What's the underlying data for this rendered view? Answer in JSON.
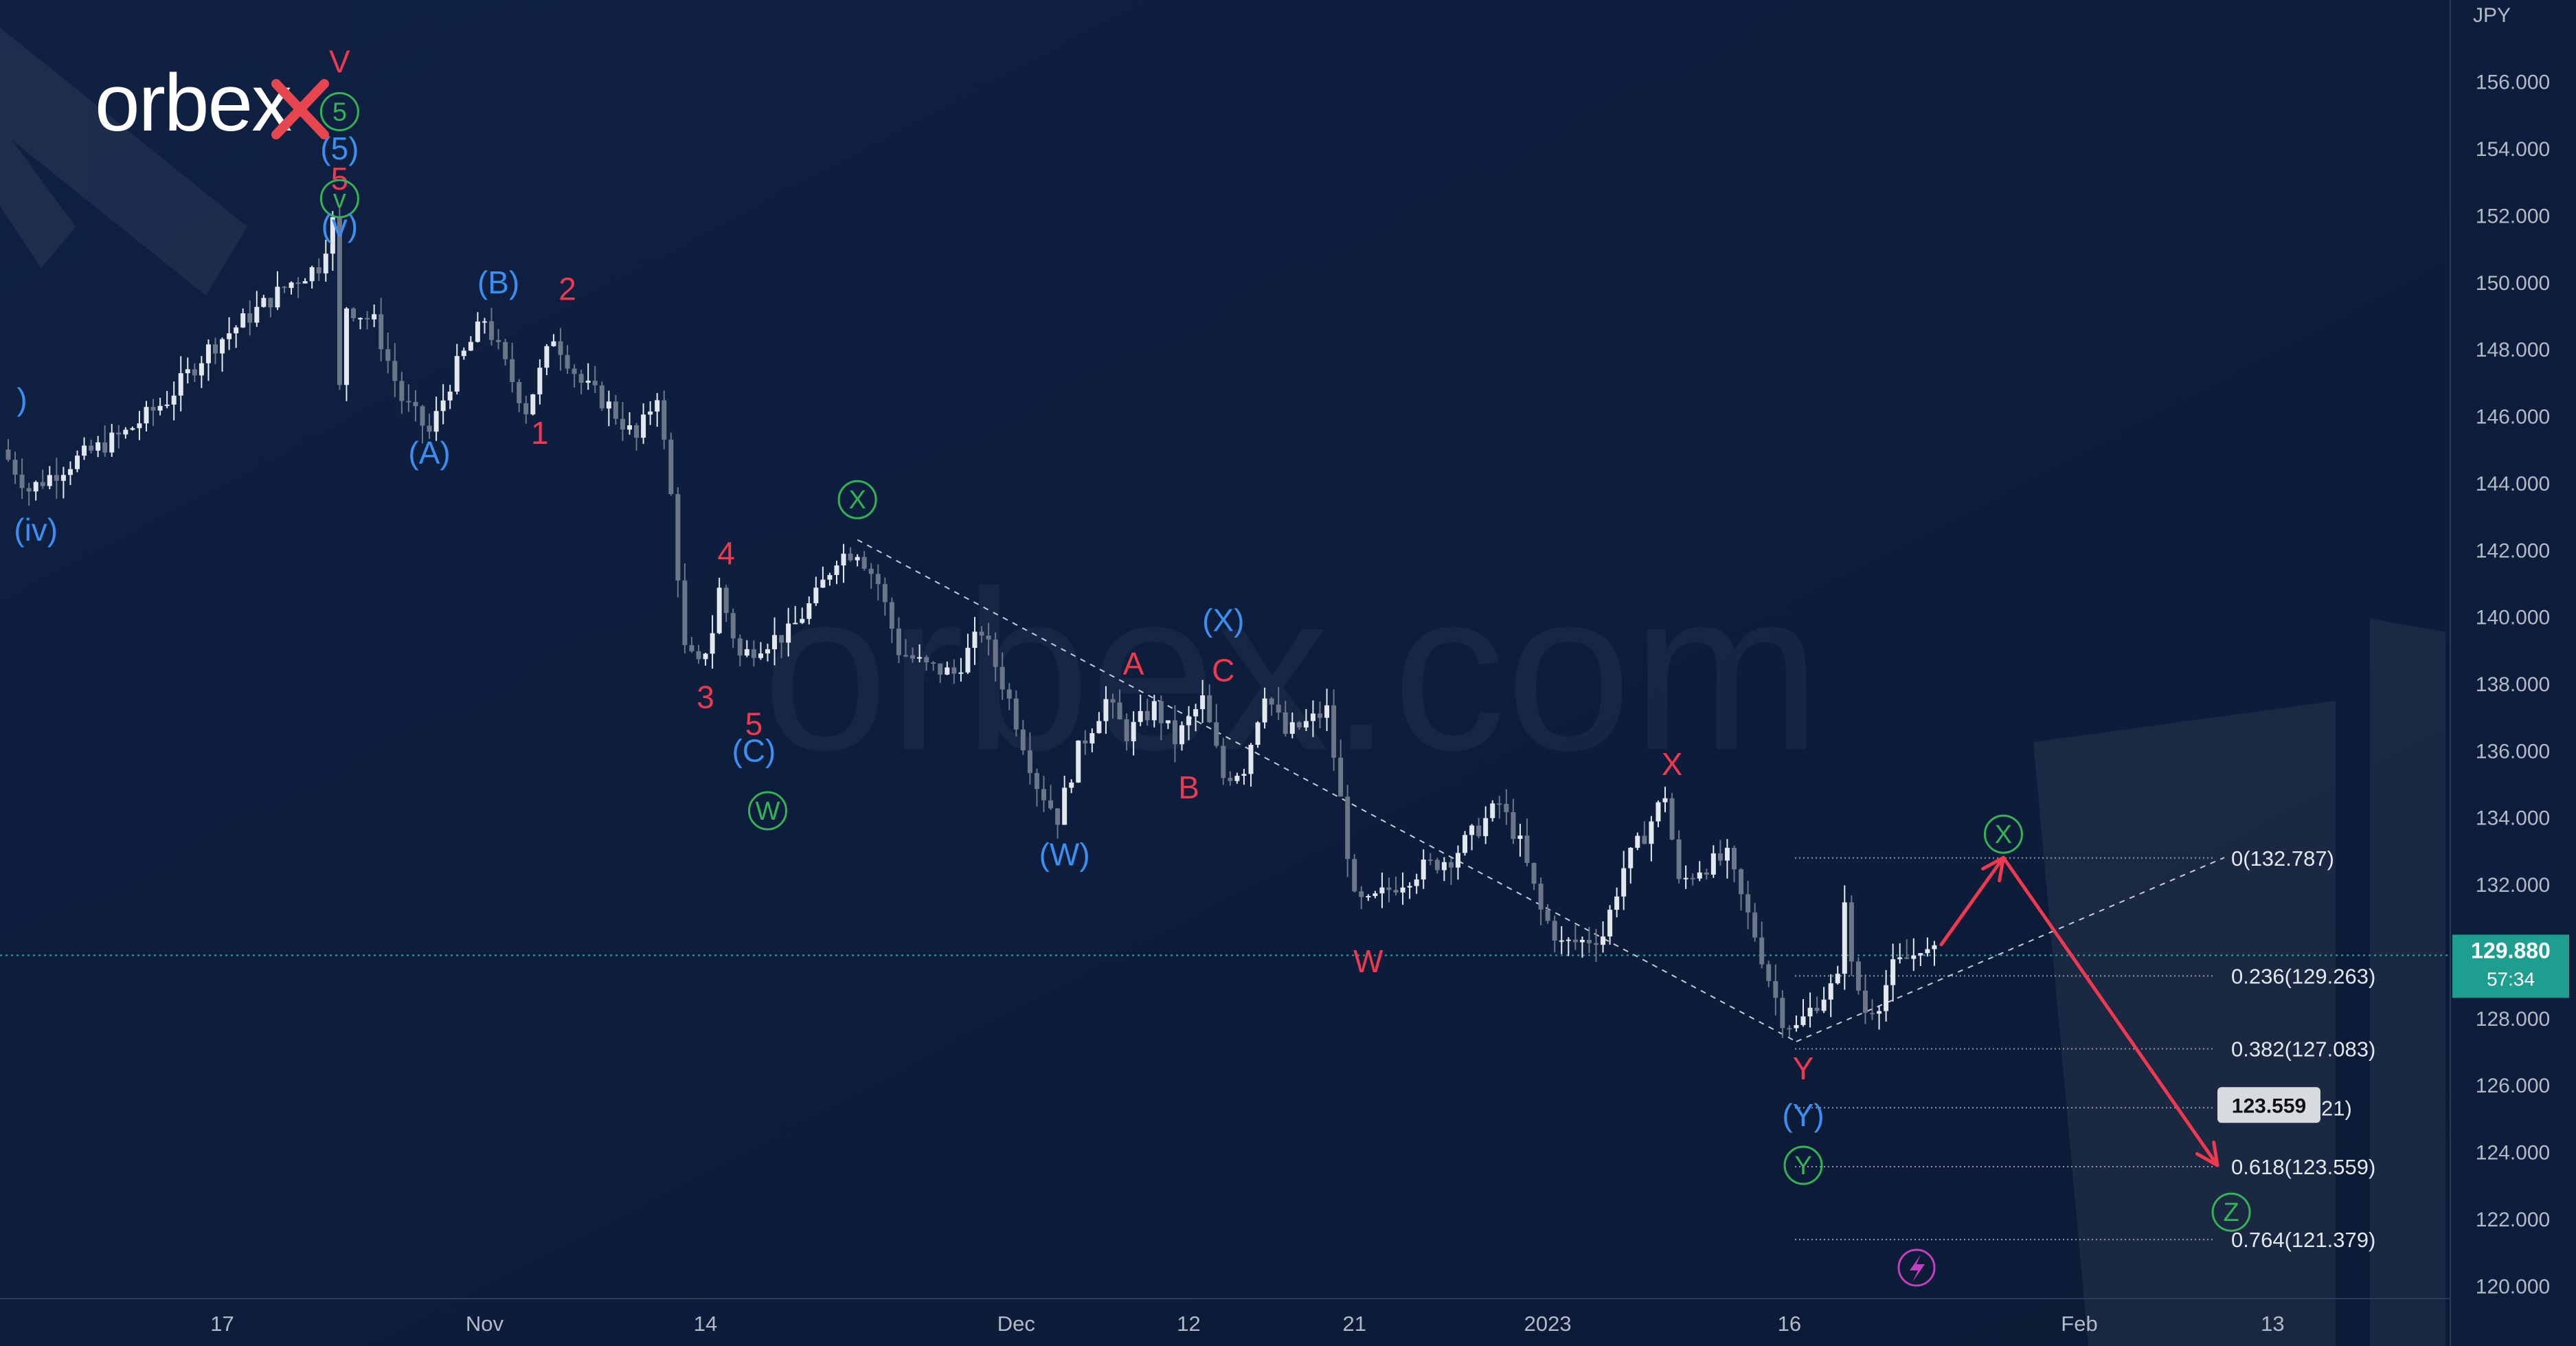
{
  "brand": {
    "logo_text": "orbex",
    "watermark": "orbex.com"
  },
  "colors": {
    "background": "#0d1d3b",
    "up_candle": "#e3e8ef",
    "down_candle": "#6b7688",
    "wave_red": "#f0394f",
    "wave_blue": "#3a8ff0",
    "wave_green": "#35b256",
    "price_tag": "#1d9e8e",
    "axis_text": "#b3bac6",
    "fib_line": "#8d96a6"
  },
  "chart_data": {
    "type": "candlestick",
    "instrument_currency": "JPY",
    "current_price": {
      "value": "129.880",
      "countdown": "57:34"
    },
    "ylim": [
      119,
      157
    ],
    "y_ticks": [
      "120.000",
      "122.000",
      "124.000",
      "126.000",
      "128.000",
      "130.000",
      "132.000",
      "134.000",
      "136.000",
      "138.000",
      "140.000",
      "142.000",
      "144.000",
      "146.000",
      "148.000",
      "150.000",
      "152.000",
      "154.000",
      "156.000"
    ],
    "x_ticks": [
      {
        "label": "17",
        "bar": 31
      },
      {
        "label": "Nov",
        "bar": 69
      },
      {
        "label": "14",
        "bar": 101
      },
      {
        "label": "Dec",
        "bar": 146
      },
      {
        "label": "12",
        "bar": 171
      },
      {
        "label": "21",
        "bar": 195
      },
      {
        "label": "2023",
        "bar": 223
      },
      {
        "label": "16",
        "bar": 258
      },
      {
        "label": "Feb",
        "bar": 300
      },
      {
        "label": "13",
        "bar": 328
      }
    ],
    "price_path": [
      [
        0,
        145.0
      ],
      [
        4,
        143.8
      ],
      [
        10,
        144.6
      ],
      [
        18,
        145.5
      ],
      [
        24,
        146.5
      ],
      [
        30,
        148.0
      ],
      [
        36,
        149.0
      ],
      [
        42,
        150.0
      ],
      [
        46,
        150.5
      ],
      [
        48,
        151.8
      ],
      [
        49,
        146.8
      ],
      [
        50,
        149.3
      ],
      [
        54,
        148.8
      ],
      [
        58,
        146.5
      ],
      [
        62,
        145.5
      ],
      [
        66,
        147.5
      ],
      [
        70,
        148.9
      ],
      [
        73,
        147.5
      ],
      [
        76,
        146.2
      ],
      [
        80,
        148.4
      ],
      [
        84,
        147.0
      ],
      [
        88,
        146.3
      ],
      [
        92,
        145.3
      ],
      [
        95,
        146.7
      ],
      [
        97,
        143.6
      ],
      [
        99,
        139.0
      ],
      [
        101,
        138.5
      ],
      [
        103,
        139.6
      ],
      [
        104,
        140.8
      ],
      [
        107,
        138.8
      ],
      [
        110,
        139.2
      ],
      [
        114,
        139.5
      ],
      [
        118,
        140.6
      ],
      [
        121,
        141.8
      ],
      [
        124,
        142.0
      ],
      [
        127,
        141.0
      ],
      [
        130,
        139.0
      ],
      [
        134,
        138.5
      ],
      [
        138,
        138.3
      ],
      [
        142,
        139.6
      ],
      [
        146,
        137.5
      ],
      [
        150,
        135.0
      ],
      [
        153,
        134.0
      ],
      [
        156,
        136.0
      ],
      [
        160,
        137.5
      ],
      [
        163,
        136.5
      ],
      [
        167,
        137.3
      ],
      [
        170,
        136.3
      ],
      [
        174,
        137.5
      ],
      [
        177,
        135.2
      ],
      [
        180,
        135.5
      ],
      [
        183,
        137.8
      ],
      [
        186,
        136.5
      ],
      [
        189,
        136.8
      ],
      [
        192,
        137.2
      ],
      [
        194,
        134.5
      ],
      [
        196,
        131.5
      ],
      [
        198,
        131.4
      ],
      [
        202,
        132.0
      ],
      [
        206,
        132.5
      ],
      [
        210,
        132.8
      ],
      [
        214,
        133.7
      ],
      [
        217,
        134.4
      ],
      [
        220,
        133.2
      ],
      [
        223,
        131.2
      ],
      [
        226,
        130.2
      ],
      [
        229,
        130.3
      ],
      [
        232,
        130.5
      ],
      [
        235,
        132.5
      ],
      [
        238,
        133.5
      ],
      [
        241,
        134.7
      ],
      [
        243,
        132.0
      ],
      [
        246,
        132.5
      ],
      [
        250,
        132.8
      ],
      [
        252,
        131.6
      ],
      [
        254,
        130.5
      ],
      [
        256,
        129.2
      ],
      [
        258,
        128.0
      ],
      [
        260,
        127.7
      ],
      [
        263,
        128.5
      ],
      [
        266,
        129.1
      ],
      [
        267,
        131.7
      ],
      [
        268,
        129.5
      ],
      [
        270,
        128.2
      ],
      [
        272,
        128.5
      ],
      [
        274,
        129.5
      ],
      [
        277,
        129.9
      ],
      [
        278,
        130.2
      ],
      [
        279,
        129.9
      ]
    ],
    "wave_labels": [
      {
        "text": "V",
        "color": "red",
        "bar": 48,
        "price": 156.6
      },
      {
        "text": "5",
        "color": "green",
        "circled": true,
        "bar": 48,
        "price": 155.1
      },
      {
        "text": "(5)",
        "color": "blue",
        "bar": 48,
        "price": 154.0
      },
      {
        "text": "5",
        "color": "red",
        "bar": 48,
        "price": 153.1
      },
      {
        "text": "v",
        "color": "green",
        "circled": true,
        "bar": 48,
        "price": 152.5
      },
      {
        "text": "(v)",
        "color": "blue",
        "bar": 48,
        "price": 151.7
      },
      {
        "text": ")",
        "color": "blue",
        "bar": 2,
        "price": 146.5
      },
      {
        "text": "(iv)",
        "color": "blue",
        "bar": 4,
        "price": 142.6
      },
      {
        "text": "(A)",
        "color": "blue",
        "bar": 61,
        "price": 144.9
      },
      {
        "text": "(B)",
        "color": "blue",
        "bar": 71,
        "price": 150.0
      },
      {
        "text": "2",
        "color": "red",
        "bar": 81,
        "price": 149.8
      },
      {
        "text": "1",
        "color": "red",
        "bar": 77,
        "price": 145.5
      },
      {
        "text": "4",
        "color": "red",
        "bar": 104,
        "price": 141.9
      },
      {
        "text": "3",
        "color": "red",
        "bar": 101,
        "price": 137.6
      },
      {
        "text": "5",
        "color": "red",
        "bar": 108,
        "price": 136.8
      },
      {
        "text": "(C)",
        "color": "blue",
        "bar": 108,
        "price": 136.0
      },
      {
        "text": "W",
        "color": "green",
        "circled": true,
        "bar": 110,
        "price": 134.2
      },
      {
        "text": "X",
        "color": "green",
        "circled": true,
        "bar": 123,
        "price": 143.5
      },
      {
        "text": "(X)",
        "color": "blue",
        "bar": 176,
        "price": 139.9
      },
      {
        "text": "A",
        "color": "red",
        "bar": 163,
        "price": 138.6
      },
      {
        "text": "C",
        "color": "red",
        "bar": 176,
        "price": 138.4
      },
      {
        "text": "B",
        "color": "red",
        "bar": 171,
        "price": 134.9
      },
      {
        "text": "(W)",
        "color": "blue",
        "bar": 153,
        "price": 132.9
      },
      {
        "text": "W",
        "color": "red",
        "bar": 197,
        "price": 129.7
      },
      {
        "text": "X",
        "color": "red",
        "bar": 241,
        "price": 135.6
      },
      {
        "text": "Y",
        "color": "red",
        "bar": 260,
        "price": 126.5
      },
      {
        "text": "(Y)",
        "color": "blue",
        "bar": 260,
        "price": 125.1
      },
      {
        "text": "Y",
        "color": "green",
        "circled": true,
        "bar": 260,
        "price": 123.6
      },
      {
        "text": "X",
        "color": "green",
        "circled": true,
        "bar": 289,
        "price": 133.5
      },
      {
        "text": "Z",
        "color": "green",
        "circled": true,
        "bar": 322,
        "price": 122.2
      }
    ],
    "trendline_upper": [
      [
        123,
        142.3
      ],
      [
        259,
        127.3
      ]
    ],
    "trendline_lower": [
      [
        259,
        127.3
      ],
      [
        321,
        132.8
      ]
    ],
    "fib_levels": [
      {
        "label": "0(132.787)",
        "value": 132.787
      },
      {
        "label": "0.236(129.263)",
        "value": 129.263
      },
      {
        "label": "0.382(127.083)",
        "value": 127.083
      },
      {
        "label": "0.5(125.321)",
        "value": 125.321
      },
      {
        "label": "0.618(123.559)",
        "value": 123.559
      },
      {
        "label": "0.764(121.379)",
        "value": 121.379
      }
    ],
    "forecast_path": [
      [
        280,
        130.2
      ],
      [
        289,
        132.8
      ],
      [
        320,
        123.6
      ]
    ],
    "target_tooltip": "123.559"
  }
}
